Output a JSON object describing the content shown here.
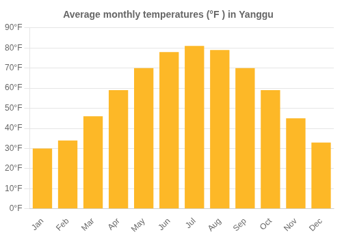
{
  "chart_data": {
    "type": "bar",
    "title": "Average monthly temperatures (°F ) in Yanggu",
    "categories": [
      "Jan",
      "Feb",
      "Mar",
      "Apr",
      "May",
      "Jun",
      "Jul",
      "Aug",
      "Sep",
      "Oct",
      "Nov",
      "Dec"
    ],
    "values": [
      30,
      34,
      46,
      59,
      70,
      78,
      81,
      79,
      70,
      59,
      45,
      33
    ],
    "color": "#FDB827",
    "ylim": [
      0,
      90
    ],
    "yticks": [
      {
        "value": 0,
        "label": "0°F"
      },
      {
        "value": 10,
        "label": "10°F"
      },
      {
        "value": 20,
        "label": "20°F"
      },
      {
        "value": 30,
        "label": "30°F"
      },
      {
        "value": 40,
        "label": "40°F"
      },
      {
        "value": 50,
        "label": "50°F"
      },
      {
        "value": 60,
        "label": "60°F"
      },
      {
        "value": 70,
        "label": "70°F"
      },
      {
        "value": 80,
        "label": "80°F"
      },
      {
        "value": 90,
        "label": "90°F"
      }
    ],
    "grid": true
  }
}
